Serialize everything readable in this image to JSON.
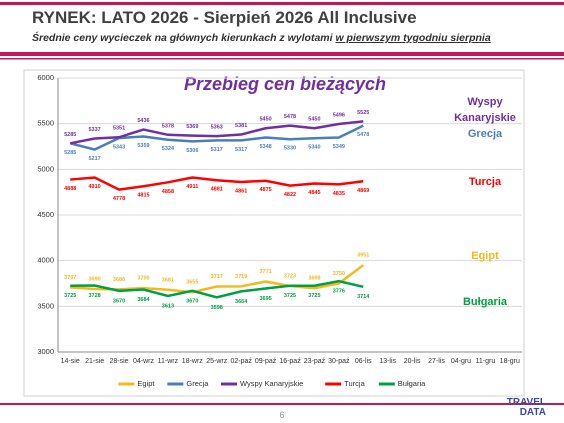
{
  "header": {
    "title": "RYNEK: LATO 2026 - Sierpień 2026 All Inclusive",
    "subtitle": "Średnie ceny wycieczek na głównych kierunkach  z wylotami",
    "subtitle_underlined": "w pierwszym tygodniu sierpnia"
  },
  "chart_data": {
    "type": "line",
    "title": "Przebieg cen bieżących",
    "categories": [
      "14-sie",
      "21-sie",
      "28-sie",
      "04-wrz",
      "11-wrz",
      "18-wrz",
      "25-wrz",
      "02-paź",
      "09-paź",
      "16-paź",
      "23-paź",
      "30-paź",
      "06-lis",
      "13-lis",
      "20-lis",
      "27-lis",
      "04-gru",
      "11-gru",
      "18-gru"
    ],
    "series": [
      {
        "name": "Egipt",
        "color": "#f5b820",
        "values": [
          3707,
          3690,
          3686,
          3700,
          3681,
          3655,
          3717,
          3719,
          3771,
          3723,
          3698,
          3750,
          3951,
          null,
          null,
          null,
          null,
          null,
          null
        ]
      },
      {
        "name": "Grecja",
        "color": "#4a7ebb",
        "values": [
          5285,
          5217,
          5343,
          5359,
          5324,
          5306,
          5317,
          5317,
          5348,
          5330,
          5340,
          5349,
          5478,
          null,
          null,
          null,
          null,
          null,
          null
        ]
      },
      {
        "name": "Wyspy Kanaryjskie",
        "color": "#7030a0",
        "values": [
          5285,
          5337,
          5351,
          5436,
          5378,
          5369,
          5363,
          5381,
          5450,
          5478,
          5450,
          5496,
          5525,
          null,
          null,
          null,
          null,
          null,
          null
        ]
      },
      {
        "name": "Turcja",
        "color": "#ff0000",
        "values": [
          4888,
          4910,
          4778,
          4815,
          4858,
          4911,
          4881,
          4861,
          4875,
          4822,
          4845,
          4835,
          4869,
          null,
          null,
          null,
          null,
          null,
          null
        ]
      },
      {
        "name": "Bułgaria",
        "color": "#00a040",
        "values": [
          3725,
          3728,
          3670,
          3684,
          3613,
          3670,
          3598,
          3664,
          3695,
          3725,
          3725,
          3776,
          3714,
          null,
          null,
          null,
          null,
          null,
          null
        ]
      }
    ],
    "ylim": [
      3000,
      6000
    ],
    "yticks": [
      3000,
      3500,
      4000,
      4500,
      5000,
      5500,
      6000
    ],
    "grid": true,
    "legend": "bottom"
  },
  "page_number": "6",
  "logo": "TRAVEL DATA"
}
